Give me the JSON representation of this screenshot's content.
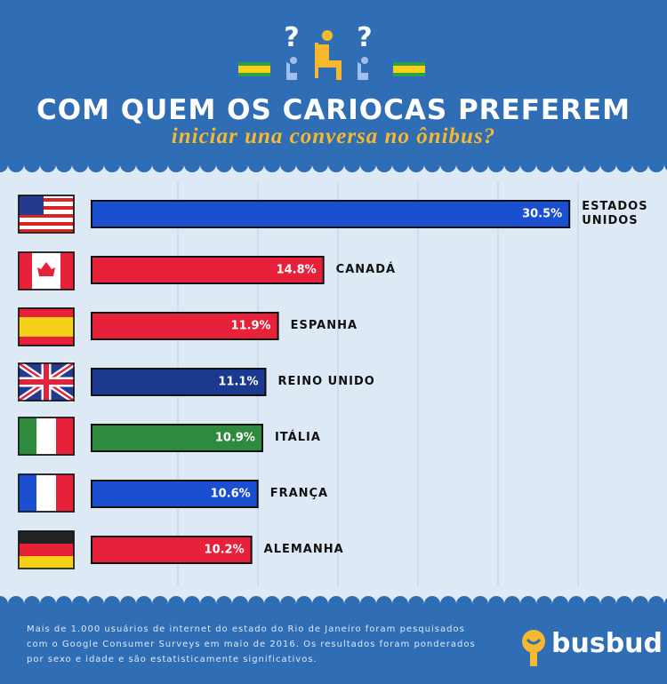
{
  "chart_data": {
    "type": "bar",
    "orientation": "horizontal",
    "title": "COM QUEM OS CARIOCAS PREFEREM",
    "subtitle": "iniciar una conversa no ônibus?",
    "categories": [
      "ESTADOS UNIDOS",
      "CANADÁ",
      "ESPANHA",
      "REINO UNIDO",
      "ITÁLIA",
      "FRANÇA",
      "ALEMANHA"
    ],
    "values": [
      30.5,
      14.8,
      11.9,
      11.1,
      10.9,
      10.6,
      10.2
    ],
    "value_labels": [
      "30.5%",
      "14.8%",
      "11.9%",
      "11.1%",
      "10.9%",
      "10.6%",
      "10.2%"
    ],
    "colors": [
      "#1a4fd0",
      "#e8213a",
      "#e8213a",
      "#1b3a8f",
      "#2e8b3e",
      "#1a4fd0",
      "#e8213a"
    ],
    "xlim": [
      0,
      31
    ],
    "grid": true
  },
  "footer": {
    "note": "Mais de 1.000 usuários de internet do estado do Rio de Janeiro foram pesquisados com o Google Consumer Surveys em maio de 2016. Os resultados foram ponderados por sexo e idade e são estatisticamente significativos.",
    "logo": "busbud"
  }
}
